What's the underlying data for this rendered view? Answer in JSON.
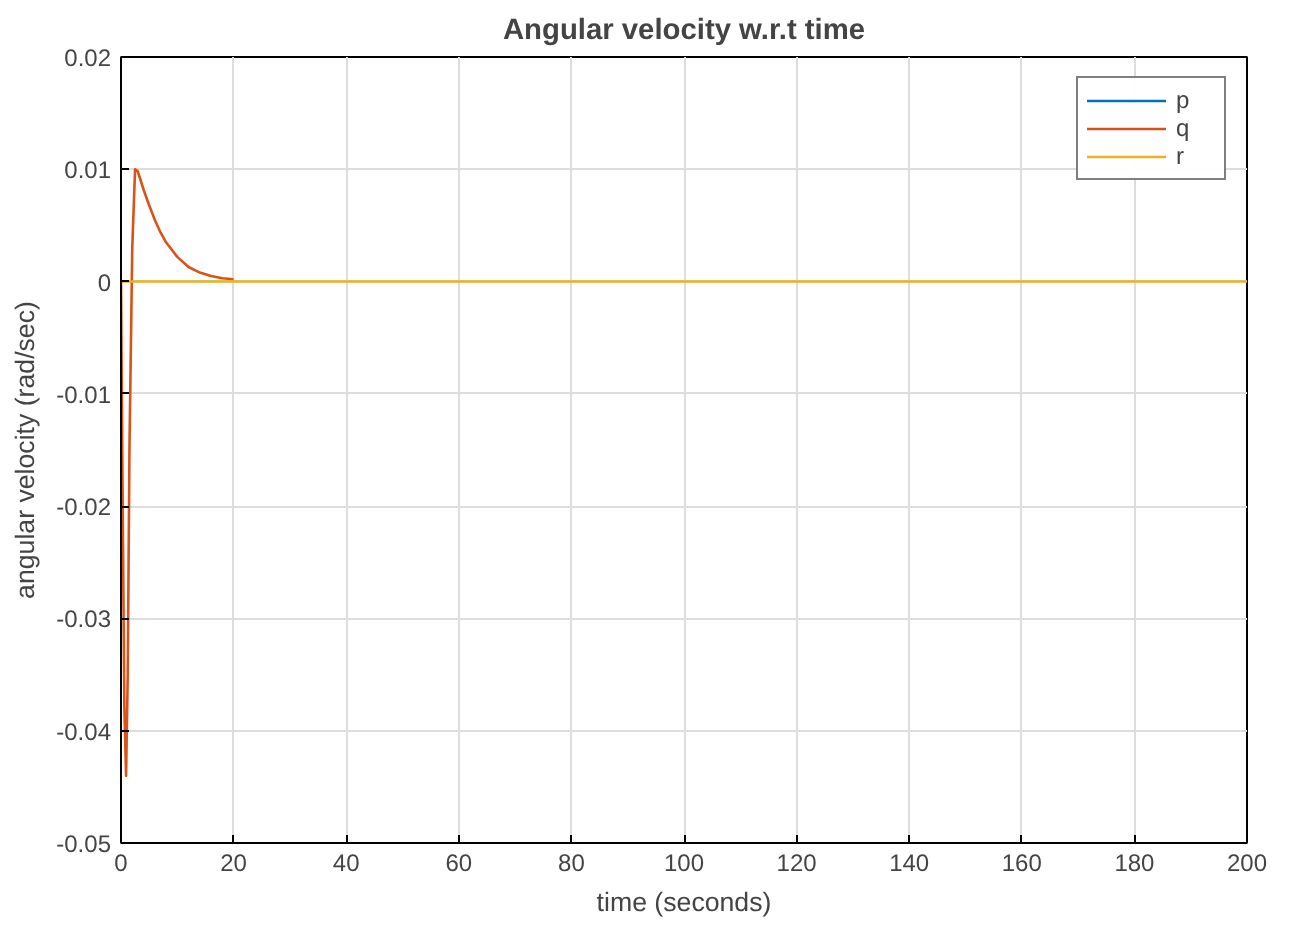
{
  "chart_data": {
    "type": "line",
    "title": "Angular velocity w.r.t time",
    "xlabel": "time (seconds)",
    "ylabel": "angular velocity (rad/sec)",
    "xlim": [
      0,
      200
    ],
    "xticks": [
      0,
      20,
      40,
      60,
      80,
      100,
      120,
      140,
      160,
      180,
      200
    ],
    "ylim": [
      -0.05,
      0.02
    ],
    "yticks": [
      -0.05,
      -0.04,
      -0.03,
      -0.02,
      -0.01,
      0,
      0.01,
      0.02
    ],
    "grid": true,
    "legend": "top right",
    "marker": "none",
    "line_style": "solid",
    "series": [
      {
        "name": "p",
        "color": "#0072bd"
      },
      {
        "name": "q",
        "color": "#d95319",
        "x": [
          0,
          0.3,
          0.6,
          0.9,
          1.2,
          1.5,
          2,
          2.5,
          3,
          4,
          5,
          6,
          7,
          8,
          10,
          12,
          14,
          16,
          18,
          20
        ],
        "values": [
          0,
          -0.02,
          -0.038,
          -0.044,
          -0.035,
          -0.015,
          0.003,
          0.01,
          0.0098,
          0.0082,
          0.0068,
          0.0055,
          0.0044,
          0.0035,
          0.0022,
          0.0013,
          0.0008,
          0.0005,
          0.0003,
          0.0002
        ]
      },
      {
        "name": "r",
        "color": "#edb120",
        "x": [
          0,
          200
        ],
        "values": [
          0,
          0
        ]
      }
    ]
  }
}
